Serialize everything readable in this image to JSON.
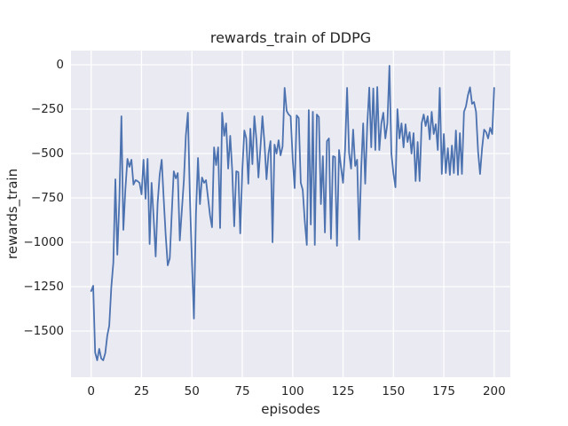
{
  "figure": {
    "title": "rewards_train of DDPG"
  },
  "chart_data": {
    "type": "line",
    "title": "rewards_train of DDPG",
    "xlabel": "episodes",
    "ylabel": "rewards_train",
    "x_ticks": [
      0,
      25,
      50,
      75,
      100,
      125,
      150,
      175,
      200
    ],
    "y_ticks": [
      0,
      -250,
      -500,
      -750,
      -1000,
      -1250,
      -1500
    ],
    "xlim": [
      -10,
      208
    ],
    "ylim": [
      -1760,
      80
    ],
    "grid": true,
    "legend": "none",
    "line_color": "#4C72B0",
    "plot_background": "#EAEAF2",
    "grid_color": "#FFFFFF",
    "text_color": "#262626",
    "series": [
      {
        "name": "rewards_train",
        "x_start": 0,
        "x_step": 1,
        "values": [
          -1275,
          -1245,
          -1620,
          -1665,
          -1600,
          -1655,
          -1665,
          -1625,
          -1525,
          -1470,
          -1255,
          -1115,
          -645,
          -1070,
          -760,
          -290,
          -930,
          -700,
          -530,
          -575,
          -535,
          -675,
          -650,
          -655,
          -665,
          -730,
          -535,
          -755,
          -530,
          -1010,
          -665,
          -860,
          -1080,
          -780,
          -620,
          -535,
          -750,
          -960,
          -1130,
          -1090,
          -840,
          -600,
          -640,
          -610,
          -990,
          -820,
          -650,
          -400,
          -270,
          -750,
          -1100,
          -1430,
          -840,
          -525,
          -785,
          -635,
          -665,
          -650,
          -750,
          -850,
          -915,
          -465,
          -565,
          -465,
          -920,
          -270,
          -400,
          -330,
          -585,
          -400,
          -600,
          -910,
          -600,
          -605,
          -950,
          -600,
          -370,
          -415,
          -670,
          -360,
          -560,
          -290,
          -420,
          -635,
          -470,
          -290,
          -440,
          -645,
          -500,
          -430,
          -1000,
          -450,
          -500,
          -425,
          -510,
          -460,
          -130,
          -260,
          -280,
          -290,
          -530,
          -695,
          -285,
          -300,
          -665,
          -705,
          -880,
          -1015,
          -255,
          -900,
          -265,
          -1015,
          -280,
          -295,
          -785,
          -515,
          -945,
          -430,
          -415,
          -980,
          -515,
          -520,
          -1020,
          -480,
          -580,
          -665,
          -480,
          -130,
          -495,
          -585,
          -365,
          -570,
          -535,
          -985,
          -585,
          -330,
          -670,
          -340,
          -128,
          -465,
          -133,
          -480,
          -125,
          -480,
          -330,
          -270,
          -415,
          -330,
          -5,
          -500,
          -610,
          -690,
          -250,
          -415,
          -330,
          -465,
          -335,
          -435,
          -380,
          -500,
          -385,
          -655,
          -435,
          -655,
          -330,
          -280,
          -345,
          -290,
          -420,
          -265,
          -390,
          -335,
          -480,
          -130,
          -615,
          -390,
          -610,
          -470,
          -620,
          -455,
          -610,
          -370,
          -620,
          -385,
          -615,
          -265,
          -235,
          -170,
          -127,
          -220,
          -210,
          -265,
          -490,
          -615,
          -470,
          -365,
          -380,
          -415,
          -355,
          -390,
          -130
        ]
      }
    ]
  }
}
